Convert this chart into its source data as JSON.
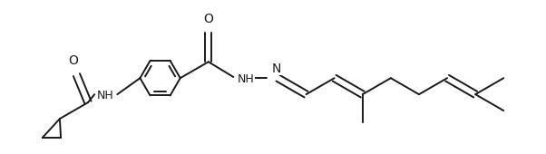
{
  "bg_color": "#ffffff",
  "line_color": "#1a1a1a",
  "line_width": 1.4,
  "font_size": 9,
  "font_color": "#1a1a1a",
  "xlim": [
    0,
    6.02
  ],
  "ylim": [
    0,
    1.7
  ]
}
